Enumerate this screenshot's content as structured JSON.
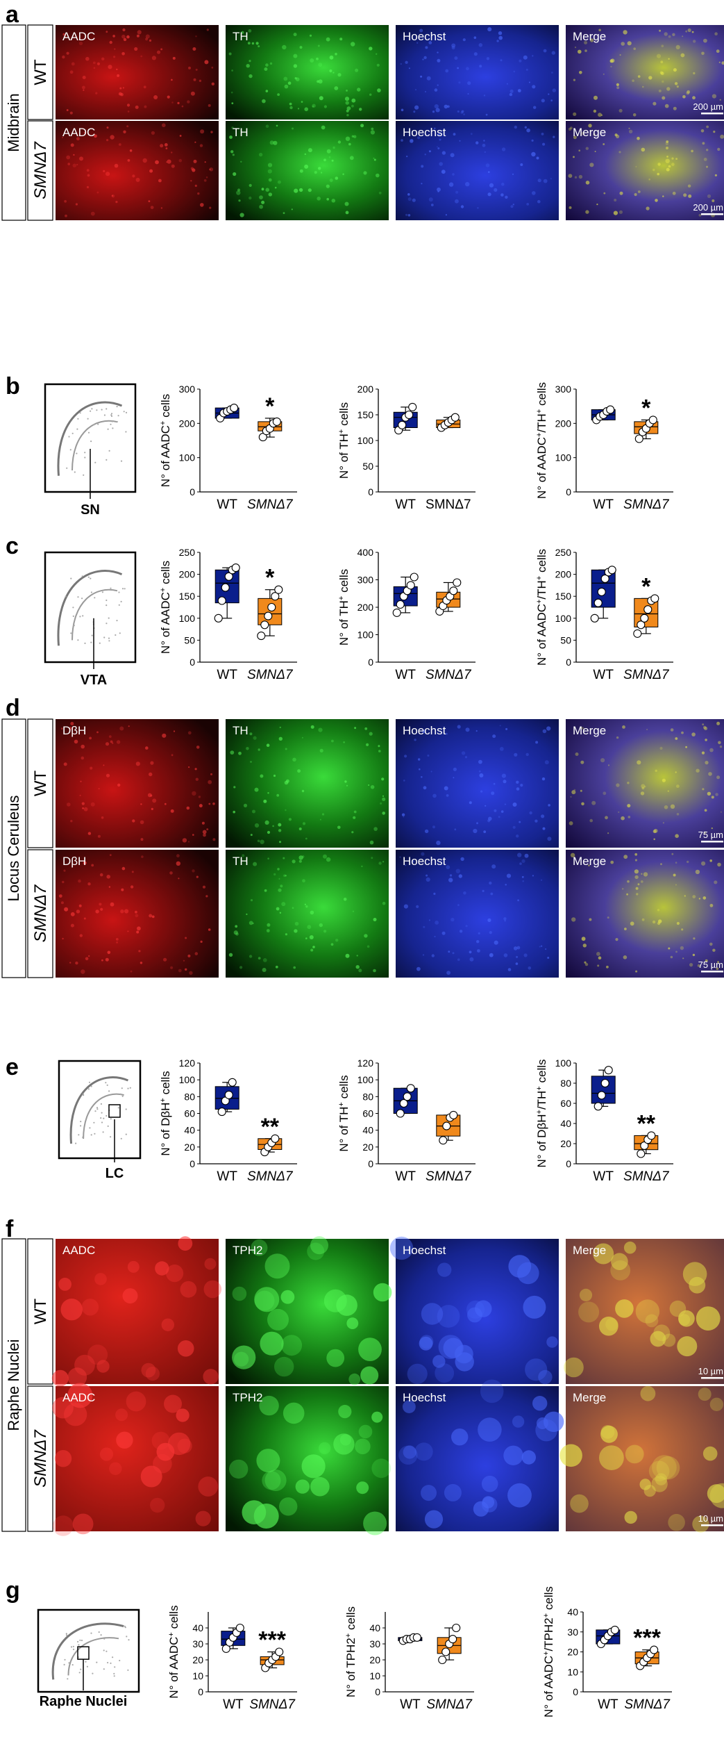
{
  "panel_letters": [
    "a",
    "b",
    "c",
    "d",
    "e",
    "f",
    "g"
  ],
  "channel_colors": {
    "red": "#d81a1a",
    "green": "#22c022",
    "blue": "#2033d8",
    "merge": "#9a8a3a"
  },
  "box_colors": {
    "WT": "#0a1e8c",
    "SMN": "#f0891c"
  },
  "micro_blocks": [
    {
      "id": "a",
      "region_label": "Midbrain",
      "rows": [
        {
          "label": "WT",
          "channels": [
            "AADC",
            "TH",
            "Hoechst",
            "Merge"
          ],
          "scale_bar": "200 µm"
        },
        {
          "label": "SMNΔ7",
          "channels": [
            "AADC",
            "TH",
            "Hoechst",
            "Merge"
          ],
          "scale_bar": "200 µm"
        }
      ]
    },
    {
      "id": "d",
      "region_label": "Locus Ceruleus",
      "rows": [
        {
          "label": "WT",
          "channels": [
            "DβH",
            "TH",
            "Hoechst",
            "Merge"
          ],
          "scale_bar": "75 µm"
        },
        {
          "label": "SMNΔ7",
          "channels": [
            "DβH",
            "TH",
            "Hoechst",
            "Merge"
          ],
          "scale_bar": "75 µm"
        }
      ]
    },
    {
      "id": "f",
      "region_label": "Raphe Nuclei",
      "rows": [
        {
          "label": "WT",
          "channels": [
            "AADC",
            "TPH2",
            "Hoechst",
            "Merge"
          ],
          "scale_bar": "10 µm"
        },
        {
          "label": "SMNΔ7",
          "channels": [
            "AADC",
            "TPH2",
            "Hoechst",
            "Merge"
          ],
          "scale_bar": "10 µm"
        }
      ]
    }
  ],
  "atlas_labels": {
    "b": "SN",
    "c": "VTA",
    "e": "LC",
    "g": "Raphe Nuclei"
  },
  "chart_data": [
    {
      "panel": "b",
      "type": "box",
      "ylabel": "N° of AADC+ cells",
      "ylim": [
        0,
        300
      ],
      "yticks": [
        0,
        100,
        200,
        300
      ],
      "categories": [
        "WT",
        "SMNΔ7"
      ],
      "q1": [
        215,
        178
      ],
      "q3": [
        245,
        205
      ],
      "median": [
        230,
        190
      ],
      "whisker_low": [
        215,
        160
      ],
      "whisker_high": [
        245,
        215
      ],
      "points": [
        [
          215,
          230,
          235,
          240,
          245
        ],
        [
          160,
          178,
          185,
          200,
          205
        ]
      ],
      "sig": [
        "",
        "*"
      ]
    },
    {
      "panel": "b",
      "type": "box",
      "ylabel": "N° of TH+ cells",
      "ylim": [
        0,
        200
      ],
      "yticks": [
        0,
        50,
        100,
        150,
        200
      ],
      "categories": [
        "WT",
        "SMNΔ7"
      ],
      "q1": [
        125,
        125
      ],
      "q3": [
        155,
        140
      ],
      "median": [
        145,
        132
      ],
      "whisker_low": [
        120,
        125
      ],
      "whisker_high": [
        165,
        145
      ],
      "points": [
        [
          120,
          130,
          145,
          150,
          165
        ],
        [
          125,
          130,
          135,
          140,
          145
        ]
      ],
      "sig": [
        "",
        ""
      ]
    },
    {
      "panel": "b",
      "type": "box",
      "ylabel": "N° of AADC+/TH+ cells",
      "ylim": [
        0,
        300
      ],
      "yticks": [
        0,
        100,
        200,
        300
      ],
      "categories": [
        "WT",
        "SMNΔ7"
      ],
      "q1": [
        210,
        170
      ],
      "q3": [
        240,
        205
      ],
      "median": [
        225,
        190
      ],
      "whisker_low": [
        210,
        155
      ],
      "whisker_high": [
        240,
        210
      ],
      "points": [
        [
          210,
          220,
          225,
          235,
          240
        ],
        [
          155,
          175,
          185,
          200,
          210
        ]
      ],
      "sig": [
        "",
        "*"
      ]
    },
    {
      "panel": "c",
      "type": "box",
      "ylabel": "N° of AADC+ cells",
      "ylim": [
        0,
        250
      ],
      "yticks": [
        0,
        50,
        100,
        150,
        200,
        250
      ],
      "categories": [
        "WT",
        "SMNΔ7"
      ],
      "q1": [
        135,
        85
      ],
      "q3": [
        210,
        145
      ],
      "median": [
        180,
        110
      ],
      "whisker_low": [
        100,
        60
      ],
      "whisker_high": [
        215,
        165
      ],
      "points": [
        [
          100,
          140,
          170,
          195,
          210,
          215
        ],
        [
          60,
          85,
          105,
          125,
          150,
          165
        ]
      ],
      "sig": [
        "",
        "*"
      ]
    },
    {
      "panel": "c",
      "type": "box",
      "ylabel": "N° of TH+ cells",
      "ylim": [
        0,
        400
      ],
      "yticks": [
        0,
        100,
        200,
        300,
        400
      ],
      "categories": [
        "WT",
        "SMNΔ7"
      ],
      "q1": [
        205,
        200
      ],
      "q3": [
        275,
        255
      ],
      "median": [
        250,
        230
      ],
      "whisker_low": [
        180,
        185
      ],
      "whisker_high": [
        310,
        290
      ],
      "points": [
        [
          180,
          210,
          240,
          260,
          280,
          310
        ],
        [
          185,
          205,
          225,
          240,
          260,
          290
        ]
      ],
      "sig": [
        "",
        ""
      ]
    },
    {
      "panel": "c",
      "type": "box",
      "ylabel": "N° of AADC+/TH+ cells",
      "ylim": [
        0,
        250
      ],
      "yticks": [
        0,
        50,
        100,
        150,
        200,
        250
      ],
      "categories": [
        "WT",
        "SMNΔ7"
      ],
      "q1": [
        125,
        80
      ],
      "q3": [
        210,
        145
      ],
      "median": [
        180,
        110
      ],
      "whisker_low": [
        100,
        65
      ],
      "whisker_high": [
        210,
        145
      ],
      "points": [
        [
          100,
          135,
          160,
          190,
          205,
          210
        ],
        [
          65,
          85,
          100,
          120,
          140,
          145
        ]
      ],
      "sig": [
        "",
        "*"
      ]
    },
    {
      "panel": "e",
      "type": "box",
      "ylabel": "N° of DβH+ cells",
      "ylim": [
        0,
        120
      ],
      "yticks": [
        0,
        20,
        40,
        60,
        80,
        100,
        120
      ],
      "categories": [
        "WT",
        "SMNΔ7"
      ],
      "q1": [
        65,
        17
      ],
      "q3": [
        92,
        30
      ],
      "median": [
        78,
        23
      ],
      "whisker_low": [
        62,
        14
      ],
      "whisker_high": [
        97,
        30
      ],
      "points": [
        [
          62,
          75,
          82,
          97
        ],
        [
          14,
          20,
          25,
          30
        ]
      ],
      "sig": [
        "",
        "**"
      ]
    },
    {
      "panel": "e",
      "type": "box",
      "ylabel": "N° of TH+ cells",
      "ylim": [
        0,
        120
      ],
      "yticks": [
        0,
        20,
        40,
        60,
        80,
        100,
        120
      ],
      "categories": [
        "WT",
        "SMNΔ7"
      ],
      "q1": [
        60,
        33
      ],
      "q3": [
        90,
        58
      ],
      "median": [
        75,
        45
      ],
      "whisker_low": [
        60,
        28
      ],
      "whisker_high": [
        90,
        58
      ],
      "points": [
        [
          60,
          72,
          80,
          90
        ],
        [
          28,
          45,
          55,
          58
        ]
      ],
      "sig": [
        "",
        ""
      ]
    },
    {
      "panel": "e",
      "type": "box",
      "ylabel": "N° of DβH+/TH+ cells",
      "ylim": [
        0,
        100
      ],
      "yticks": [
        0,
        20,
        40,
        60,
        80,
        100
      ],
      "categories": [
        "WT",
        "SMNΔ7"
      ],
      "q1": [
        60,
        14
      ],
      "q3": [
        87,
        28
      ],
      "median": [
        70,
        20
      ],
      "whisker_low": [
        57,
        10
      ],
      "whisker_high": [
        93,
        28
      ],
      "points": [
        [
          57,
          68,
          80,
          93
        ],
        [
          10,
          18,
          24,
          28
        ]
      ],
      "sig": [
        "",
        "**"
      ]
    },
    {
      "panel": "g",
      "type": "box",
      "ylabel": "N° of AADC+ cells",
      "ylim": [
        0,
        50
      ],
      "yticks": [
        0,
        10,
        20,
        30,
        40
      ],
      "categories": [
        "WT",
        "SMNΔ7"
      ],
      "q1": [
        29,
        17
      ],
      "q3": [
        38,
        22
      ],
      "median": [
        33,
        20
      ],
      "whisker_low": [
        27,
        15
      ],
      "whisker_high": [
        40,
        25
      ],
      "points": [
        [
          27,
          31,
          34,
          37,
          40
        ],
        [
          15,
          18,
          20,
          22,
          25
        ]
      ],
      "sig": [
        "",
        "***"
      ]
    },
    {
      "panel": "g",
      "type": "box",
      "ylabel": "N° of TPH2+ cells",
      "ylim": [
        0,
        50
      ],
      "yticks": [
        0,
        10,
        20,
        30,
        40
      ],
      "categories": [
        "WT",
        "SMNΔ7"
      ],
      "q1": [
        32,
        24
      ],
      "q3": [
        34,
        34
      ],
      "median": [
        33,
        29
      ],
      "whisker_low": [
        32,
        20
      ],
      "whisker_high": [
        34,
        40
      ],
      "points": [
        [
          32,
          33,
          33,
          34,
          34
        ],
        [
          20,
          25,
          30,
          33,
          40
        ]
      ],
      "sig": [
        "",
        ""
      ]
    },
    {
      "panel": "g",
      "type": "box",
      "ylabel": "N° of AADC+/TPH2+ cells",
      "ylim": [
        0,
        40
      ],
      "yticks": [
        0,
        10,
        20,
        30,
        40
      ],
      "categories": [
        "WT",
        "SMNΔ7"
      ],
      "q1": [
        24,
        14
      ],
      "q3": [
        31,
        20
      ],
      "median": [
        28,
        17
      ],
      "whisker_low": [
        24,
        13
      ],
      "whisker_high": [
        31,
        21
      ],
      "points": [
        [
          24,
          26,
          28,
          30,
          31
        ],
        [
          13,
          15,
          17,
          19,
          21
        ]
      ],
      "sig": [
        "",
        "***"
      ]
    }
  ]
}
